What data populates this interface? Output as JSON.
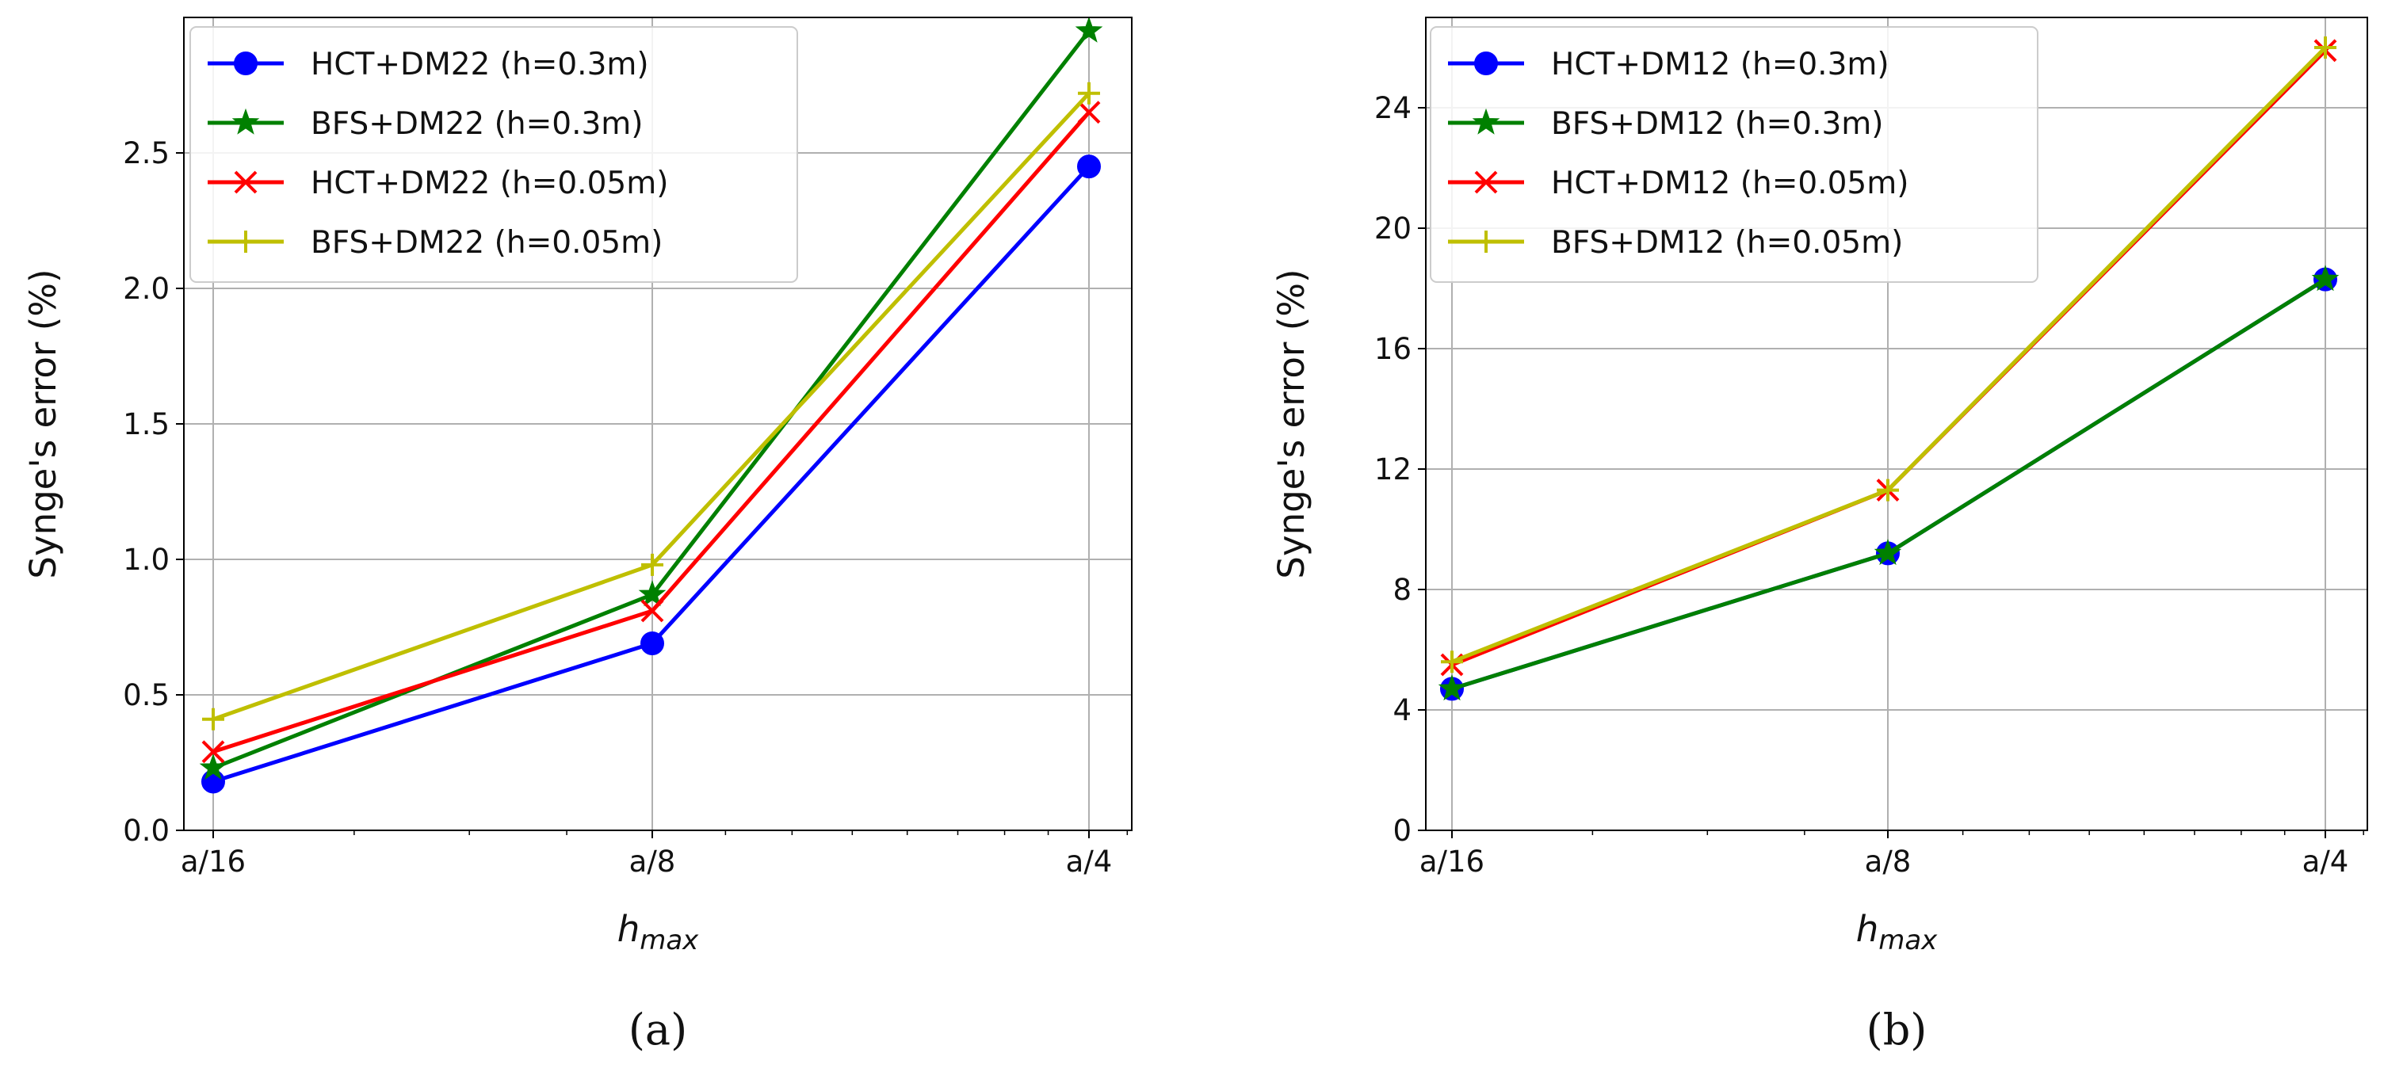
{
  "chart_data": [
    {
      "type": "line",
      "panel_label": "(a)",
      "xlabel": "h",
      "xlabel_sub": "max",
      "ylabel": "Synge's error  (%)",
      "categories": [
        "a/16",
        "a/8",
        "a/4"
      ],
      "x": [
        0.0625,
        0.125,
        0.25
      ],
      "ylim": [
        0,
        3.0
      ],
      "yticks": [
        "0.0",
        "0.5",
        "1.0",
        "1.5",
        "2.0",
        "2.5"
      ],
      "ytick_values": [
        0,
        0.5,
        1.0,
        1.5,
        2.0,
        2.5
      ],
      "grid": true,
      "legend_position": "upper-left",
      "series": [
        {
          "name": "HCT+DM22 (h=0.3m)",
          "values": [
            0.18,
            0.69,
            2.45
          ],
          "color": "#0000ff",
          "marker": "circle"
        },
        {
          "name": "BFS+DM22 (h=0.3m)",
          "values": [
            0.23,
            0.87,
            2.95
          ],
          "color": "#008000",
          "marker": "star"
        },
        {
          "name": "HCT+DM22 (h=0.05m)",
          "values": [
            0.29,
            0.81,
            2.65
          ],
          "color": "#ff0000",
          "marker": "x"
        },
        {
          "name": "BFS+DM22 (h=0.05m)",
          "values": [
            0.41,
            0.98,
            2.72
          ],
          "color": "#bfbf00",
          "marker": "plus"
        }
      ]
    },
    {
      "type": "line",
      "panel_label": "(b)",
      "xlabel": "h",
      "xlabel_sub": "max",
      "ylabel": "Synge's error  (%)",
      "categories": [
        "a/16",
        "a/8",
        "a/4"
      ],
      "x": [
        0.0625,
        0.125,
        0.25
      ],
      "ylim": [
        0,
        27
      ],
      "yticks": [
        "0",
        "4",
        "8",
        "12",
        "16",
        "20",
        "24"
      ],
      "ytick_values": [
        0,
        4,
        8,
        12,
        16,
        20,
        24
      ],
      "grid": true,
      "legend_position": "upper-left",
      "series": [
        {
          "name": "HCT+DM12 (h=0.3m)",
          "values": [
            4.7,
            9.2,
            18.3
          ],
          "color": "#0000ff",
          "marker": "circle"
        },
        {
          "name": "BFS+DM12 (h=0.3m)",
          "values": [
            4.7,
            9.2,
            18.3
          ],
          "color": "#008000",
          "marker": "star"
        },
        {
          "name": "HCT+DM12 (h=0.05m)",
          "values": [
            5.5,
            11.3,
            25.9
          ],
          "color": "#ff0000",
          "marker": "x"
        },
        {
          "name": "BFS+DM12 (h=0.05m)",
          "values": [
            5.6,
            11.3,
            26.0
          ],
          "color": "#bfbf00",
          "marker": "plus"
        }
      ]
    }
  ]
}
